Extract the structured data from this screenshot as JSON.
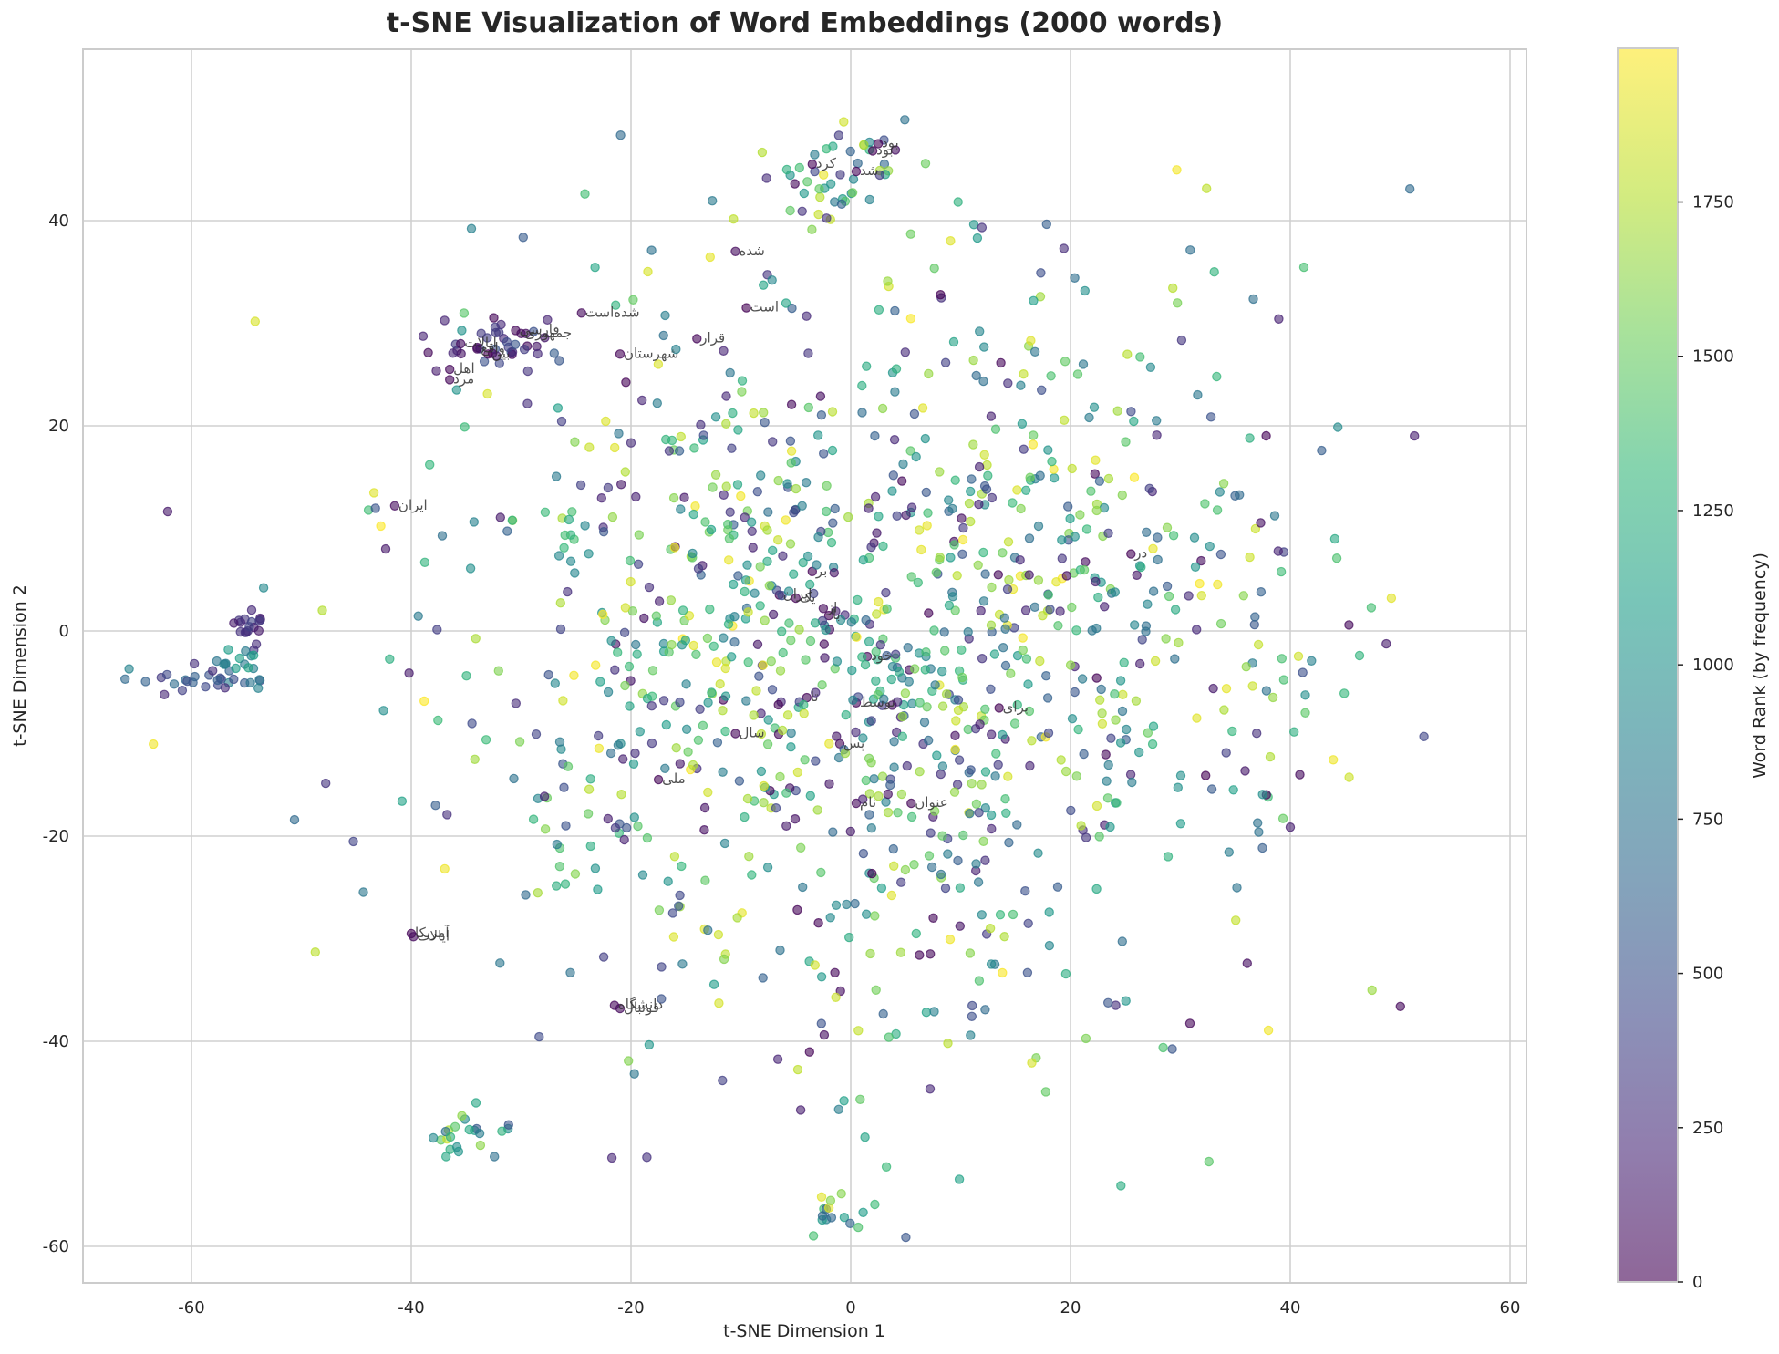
{
  "chart_data": {
    "type": "scatter",
    "title": "t-SNE Visualization of Word Embeddings (2000 words)",
    "xlabel": "t-SNE Dimension 1",
    "ylabel": "t-SNE Dimension 2",
    "xlim": [
      -70,
      62
    ],
    "ylim": [
      -63,
      57
    ],
    "xticks": [
      -60,
      -40,
      -20,
      0,
      20,
      40,
      60
    ],
    "yticks": [
      -60,
      -40,
      -20,
      0,
      20,
      40
    ],
    "grid": true,
    "n_points": 2000,
    "marker_alpha": 0.6,
    "colormap": "viridis",
    "colorbar": {
      "label": "Word Rank (by frequency)",
      "range": [
        0,
        1999
      ],
      "ticks": [
        0,
        250,
        500,
        750,
        1000,
        1250,
        1500,
        1750
      ]
    },
    "clusters": [
      {
        "name": "far-left tail",
        "cx": -58,
        "cy": -5,
        "sx": 3.0,
        "sy": 0.9,
        "n": 30,
        "rank": [
          200,
          900
        ]
      },
      {
        "name": "left purple blob",
        "cx": -54.5,
        "cy": 0,
        "sx": 0.8,
        "sy": 0.8,
        "n": 18,
        "rank": [
          100,
          400
        ]
      },
      {
        "name": "left teal",
        "cx": -56,
        "cy": -3,
        "sx": 1.0,
        "sy": 0.9,
        "n": 12,
        "rank": [
          700,
          1200
        ]
      },
      {
        "name": "upper-left band",
        "cx": -32,
        "cy": 28,
        "sx": 3.0,
        "sy": 1.5,
        "n": 40,
        "rank": [
          0,
          600
        ]
      },
      {
        "name": "top cluster",
        "cx": 0,
        "cy": 45,
        "sx": 4.0,
        "sy": 3.0,
        "n": 45,
        "rank": [
          0,
          1999
        ]
      },
      {
        "name": "bottom cluster",
        "cx": -2,
        "cy": -57,
        "sx": 1.2,
        "sy": 1.0,
        "n": 16,
        "rank": [
          500,
          1999
        ]
      },
      {
        "name": "lower-left",
        "cx": -35,
        "cy": -49,
        "sx": 1.5,
        "sy": 1.3,
        "n": 22,
        "rank": [
          300,
          1900
        ]
      }
    ],
    "annotations": [
      {
        "text": "بود",
        "x": 2.5,
        "y": 47.5
      },
      {
        "text": "بود",
        "x": 2.0,
        "y": 46.8
      },
      {
        "text": "کرد",
        "x": -3.5,
        "y": 45.5
      },
      {
        "text": "شد",
        "x": 0.5,
        "y": 44.8
      },
      {
        "text": "شده",
        "x": -10.5,
        "y": 37.0
      },
      {
        "text": "است",
        "x": -9.5,
        "y": 31.5
      },
      {
        "text": "شده‌است",
        "x": -24.5,
        "y": 31.0
      },
      {
        "text": "قرار",
        "x": -14.0,
        "y": 28.5
      },
      {
        "text": "شهرستان",
        "x": -21.0,
        "y": 27.0
      },
      {
        "text": "جمهوری",
        "x": -30.0,
        "y": 29.0
      },
      {
        "text": "فارسی",
        "x": -30.5,
        "y": 29.3
      },
      {
        "text": "ایالات",
        "x": -35.5,
        "y": 28.0
      },
      {
        "text": "واقع",
        "x": -34.0,
        "y": 27.5
      },
      {
        "text": "بین",
        "x": -33.0,
        "y": 27.0
      },
      {
        "text": "اهل",
        "x": -36.5,
        "y": 25.5
      },
      {
        "text": "مرد",
        "x": -36.5,
        "y": 24.5
      },
      {
        "text": "ایران",
        "x": -41.5,
        "y": 12.2
      },
      {
        "text": "ایران",
        "x": -6.5,
        "y": 3.5
      },
      {
        "text": "یک",
        "x": -5.0,
        "y": 3.2
      },
      {
        "text": "بر",
        "x": -3.5,
        "y": 5.8
      },
      {
        "text": "از",
        "x": -2.5,
        "y": 2.2
      },
      {
        "text": "با",
        "x": -2.0,
        "y": 1.5
      },
      {
        "text": "در",
        "x": 25.5,
        "y": 7.5
      },
      {
        "text": "خود",
        "x": 1.5,
        "y": -2.5
      },
      {
        "text": "تا",
        "x": -4.0,
        "y": -6.5
      },
      {
        "text": "توسط",
        "x": 0.5,
        "y": -7.0
      },
      {
        "text": "برای",
        "x": 13.5,
        "y": -7.5
      },
      {
        "text": "سال",
        "x": -10.5,
        "y": -10.0
      },
      {
        "text": "پس",
        "x": -1.0,
        "y": -11.0
      },
      {
        "text": "ملی",
        "x": -17.5,
        "y": -14.5
      },
      {
        "text": "نام",
        "x": 0.5,
        "y": -16.8
      },
      {
        "text": "عنوان",
        "x": 5.5,
        "y": -16.8
      },
      {
        "text": "آمریکا",
        "x": -40.0,
        "y": -29.5
      },
      {
        "text": "ایالات",
        "x": -39.8,
        "y": -29.8
      },
      {
        "text": "دانشگاه",
        "x": -21.5,
        "y": -36.5
      },
      {
        "text": "فوتبال",
        "x": -21.0,
        "y": -36.8
      }
    ]
  },
  "colors": {
    "grid": "#d0d0d0",
    "spine": "#cccccc",
    "text": "#262626",
    "viridis": [
      "#440154",
      "#482878",
      "#3e4989",
      "#31688e",
      "#26828e",
      "#1f9e89",
      "#35b779",
      "#6ece58",
      "#b5de2b",
      "#fde725"
    ]
  }
}
